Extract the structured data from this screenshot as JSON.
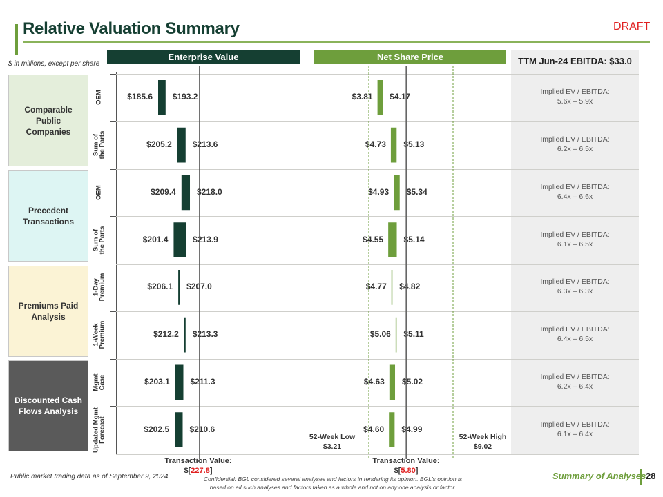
{
  "header": {
    "title": "Relative Valuation Summary",
    "draft_label": "DRAFT",
    "units_note": "$ in millions, except per share"
  },
  "columns": {
    "enterprise_value": "Enterprise Value",
    "net_share_price": "Net Share Price",
    "ttm_ebitda": "TTM Jun-24 EBITDA: $33.0"
  },
  "categories": [
    {
      "label": "Comparable Public Companies",
      "color": "#e4eedb"
    },
    {
      "label": "Precedent Transactions",
      "color": "#ddf5f3"
    },
    {
      "label": "Premiums Paid Analysis",
      "color": "#fbf3d5"
    },
    {
      "label": "Discounted Cash Flows Analysis",
      "color": "#5a5a5a"
    }
  ],
  "chart_data": {
    "type": "bar",
    "subtype": "floating-range (football field)",
    "title": "Relative Valuation Summary",
    "rows": [
      {
        "category": "Comparable Public Companies",
        "label": "OEM",
        "ev_low": 185.6,
        "ev_high": 193.2,
        "nsp_low": 3.81,
        "nsp_high": 4.17,
        "implied": "5.6x – 5.9x"
      },
      {
        "category": "Comparable Public Companies",
        "label": "Sum of the Parts",
        "ev_low": 205.2,
        "ev_high": 213.6,
        "nsp_low": 4.73,
        "nsp_high": 5.13,
        "implied": "6.2x – 6.5x"
      },
      {
        "category": "Precedent Transactions",
        "label": "OEM",
        "ev_low": 209.4,
        "ev_high": 218.0,
        "nsp_low": 4.93,
        "nsp_high": 5.34,
        "implied": "6.4x – 6.6x"
      },
      {
        "category": "Precedent Transactions",
        "label": "Sum of the Parts",
        "ev_low": 201.4,
        "ev_high": 213.9,
        "nsp_low": 4.55,
        "nsp_high": 5.14,
        "implied": "6.1x – 6.5x"
      },
      {
        "category": "Premiums Paid Analysis",
        "label": "1-Day Premium",
        "ev_low": 206.1,
        "ev_high": 207.0,
        "nsp_low": 4.77,
        "nsp_high": 4.82,
        "implied": "6.3x – 6.3x"
      },
      {
        "category": "Premiums Paid Analysis",
        "label": "1-Week Premium",
        "ev_low": 212.2,
        "ev_high": 213.3,
        "nsp_low": 5.06,
        "nsp_high": 5.11,
        "implied": "6.4x – 6.5x"
      },
      {
        "category": "Discounted Cash Flows Analysis",
        "label": "Mgmt Case",
        "ev_low": 203.1,
        "ev_high": 211.3,
        "nsp_low": 4.63,
        "nsp_high": 5.02,
        "implied": "6.2x – 6.4x"
      },
      {
        "category": "Discounted Cash Flows Analysis",
        "label": "Updated Mgmt Forecast",
        "ev_low": 202.5,
        "ev_high": 210.6,
        "nsp_low": 4.6,
        "nsp_high": 4.99,
        "implied": "6.1x – 6.4x"
      }
    ],
    "row_labels_display": [
      [
        "OEM"
      ],
      [
        "Sum of",
        "the Parts"
      ],
      [
        "OEM"
      ],
      [
        "Sum of",
        "the Parts"
      ],
      [
        "1-Day",
        "Premium"
      ],
      [
        "1-Week",
        "Premium"
      ],
      [
        "Mgmt",
        "Case"
      ],
      [
        "Updated Mgmt",
        "Forecast"
      ]
    ],
    "ev_labels": [
      [
        "$185.6",
        "$193.2"
      ],
      [
        "$205.2",
        "$213.6"
      ],
      [
        "$209.4",
        "$218.0"
      ],
      [
        "$201.4",
        "$213.9"
      ],
      [
        "$206.1",
        "$207.0"
      ],
      [
        "$212.2",
        "$213.3"
      ],
      [
        "$203.1",
        "$211.3"
      ],
      [
        "$202.5",
        "$210.6"
      ]
    ],
    "nsp_labels": [
      [
        "$3.81",
        "$4.17"
      ],
      [
        "$4.73",
        "$5.13"
      ],
      [
        "$4.93",
        "$5.34"
      ],
      [
        "$4.55",
        "$5.14"
      ],
      [
        "$4.77",
        "$4.82"
      ],
      [
        "$5.06",
        "$5.11"
      ],
      [
        "$4.63",
        "$5.02"
      ],
      [
        "$4.60",
        "$4.99"
      ]
    ],
    "implied_prefix": "Implied EV / EBITDA:",
    "ev_transaction_value": 227.8,
    "nsp_transaction_value": 5.8,
    "week52_low": 3.21,
    "week52_high": 9.02,
    "ev_color": "#153f32",
    "nsp_color": "#6e9e3c"
  },
  "reference": {
    "ev_txn_label": "Transaction Value:",
    "ev_txn_value_prefix": "$[",
    "ev_txn_value": "227.8",
    "ev_txn_value_suffix": "]",
    "nsp_txn_label": "Transaction Value:",
    "nsp_txn_value_prefix": "$[",
    "nsp_txn_value": "5.80",
    "nsp_txn_value_suffix": "]",
    "week52_low_label": "52-Week Low",
    "week52_low_value": "$3.21",
    "week52_high_label": "52-Week High",
    "week52_high_value": "$9.02"
  },
  "footer": {
    "market_note": "Public market trading data as of September 9, 2024",
    "confidential_line1": "Confidential: BGL considered several analyses and factors in rendering its opinion. BGL's opinion is",
    "confidential_line2": "based on all such analyses and factors taken as a whole and not on any one analysis or factor.",
    "section": "Summary of Analyses",
    "page_number": "28"
  }
}
